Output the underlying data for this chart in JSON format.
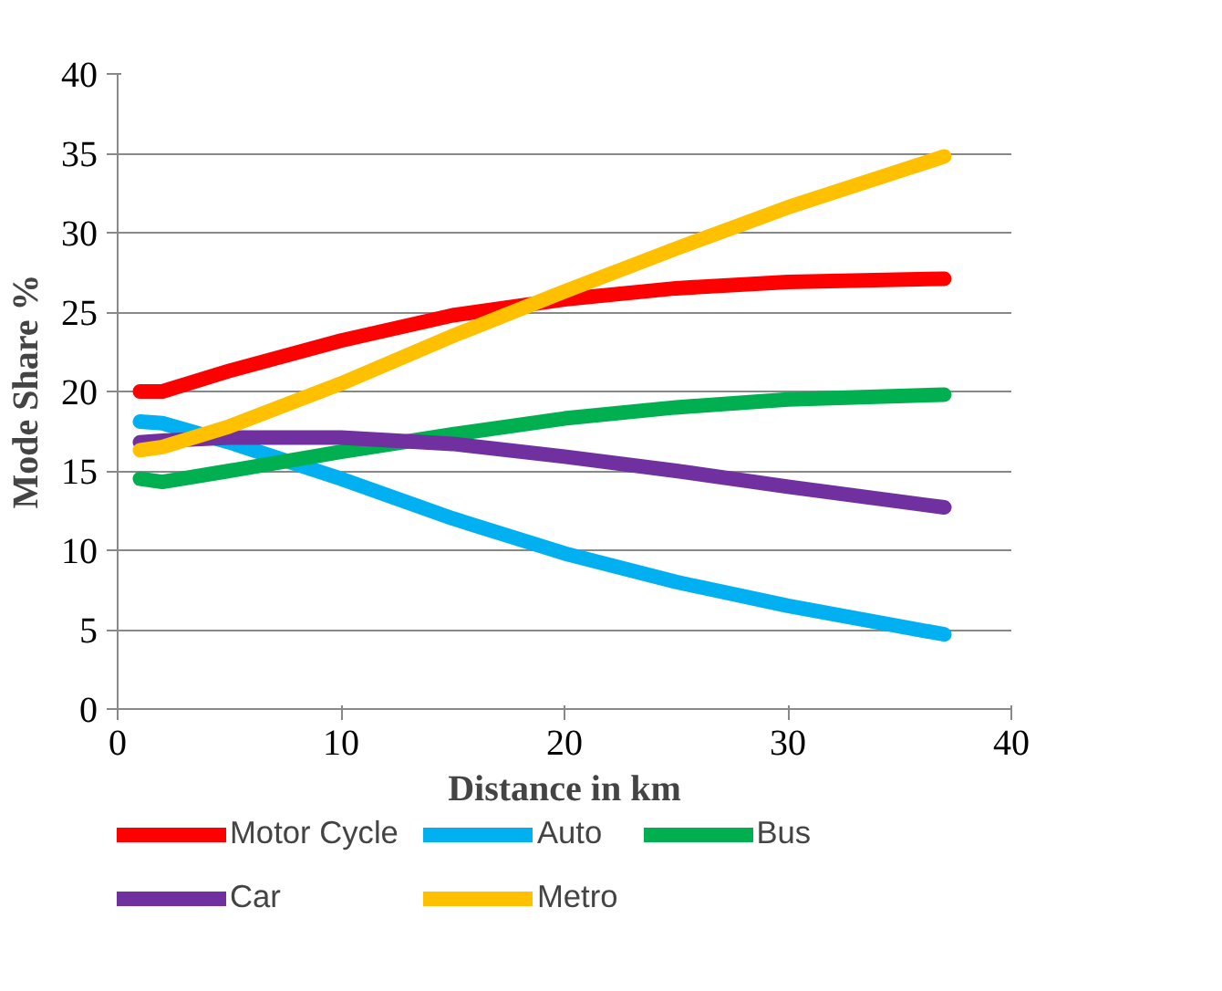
{
  "chart_data": {
    "type": "line",
    "xlabel": "Distance in km",
    "ylabel": "Mode Share %",
    "x": [
      1,
      2,
      5,
      10,
      15,
      20,
      25,
      30,
      37
    ],
    "series": [
      {
        "name": "Motor Cycle",
        "color": "#ff0000",
        "values": [
          20,
          20,
          21.3,
          23.2,
          24.8,
          25.8,
          26.5,
          26.9,
          27.1
        ]
      },
      {
        "name": "Auto",
        "color": "#00b0f0",
        "values": [
          18.1,
          18,
          16.8,
          14.5,
          12,
          9.8,
          8,
          6.5,
          4.7
        ]
      },
      {
        "name": "Bus",
        "color": "#00b050",
        "values": [
          14.5,
          14.3,
          15,
          16.2,
          17.3,
          18.3,
          19,
          19.5,
          19.8
        ]
      },
      {
        "name": "Car",
        "color": "#7030a0",
        "values": [
          16.8,
          16.9,
          17.1,
          17.1,
          16.7,
          15.9,
          15,
          14,
          12.7
        ]
      },
      {
        "name": "Metro",
        "color": "#ffc000",
        "values": [
          16.3,
          16.5,
          17.8,
          20.5,
          23.5,
          26.3,
          29,
          31.6,
          34.8
        ]
      }
    ],
    "xlim": [
      0,
      40
    ],
    "xticks": [
      0,
      10,
      20,
      30,
      40
    ],
    "ylim": [
      0,
      40
    ],
    "yticks": [
      0,
      5,
      10,
      15,
      20,
      25,
      30,
      35,
      40
    ],
    "grid": "y",
    "legend": "bottom",
    "marker": "none",
    "line_style": "solid"
  }
}
